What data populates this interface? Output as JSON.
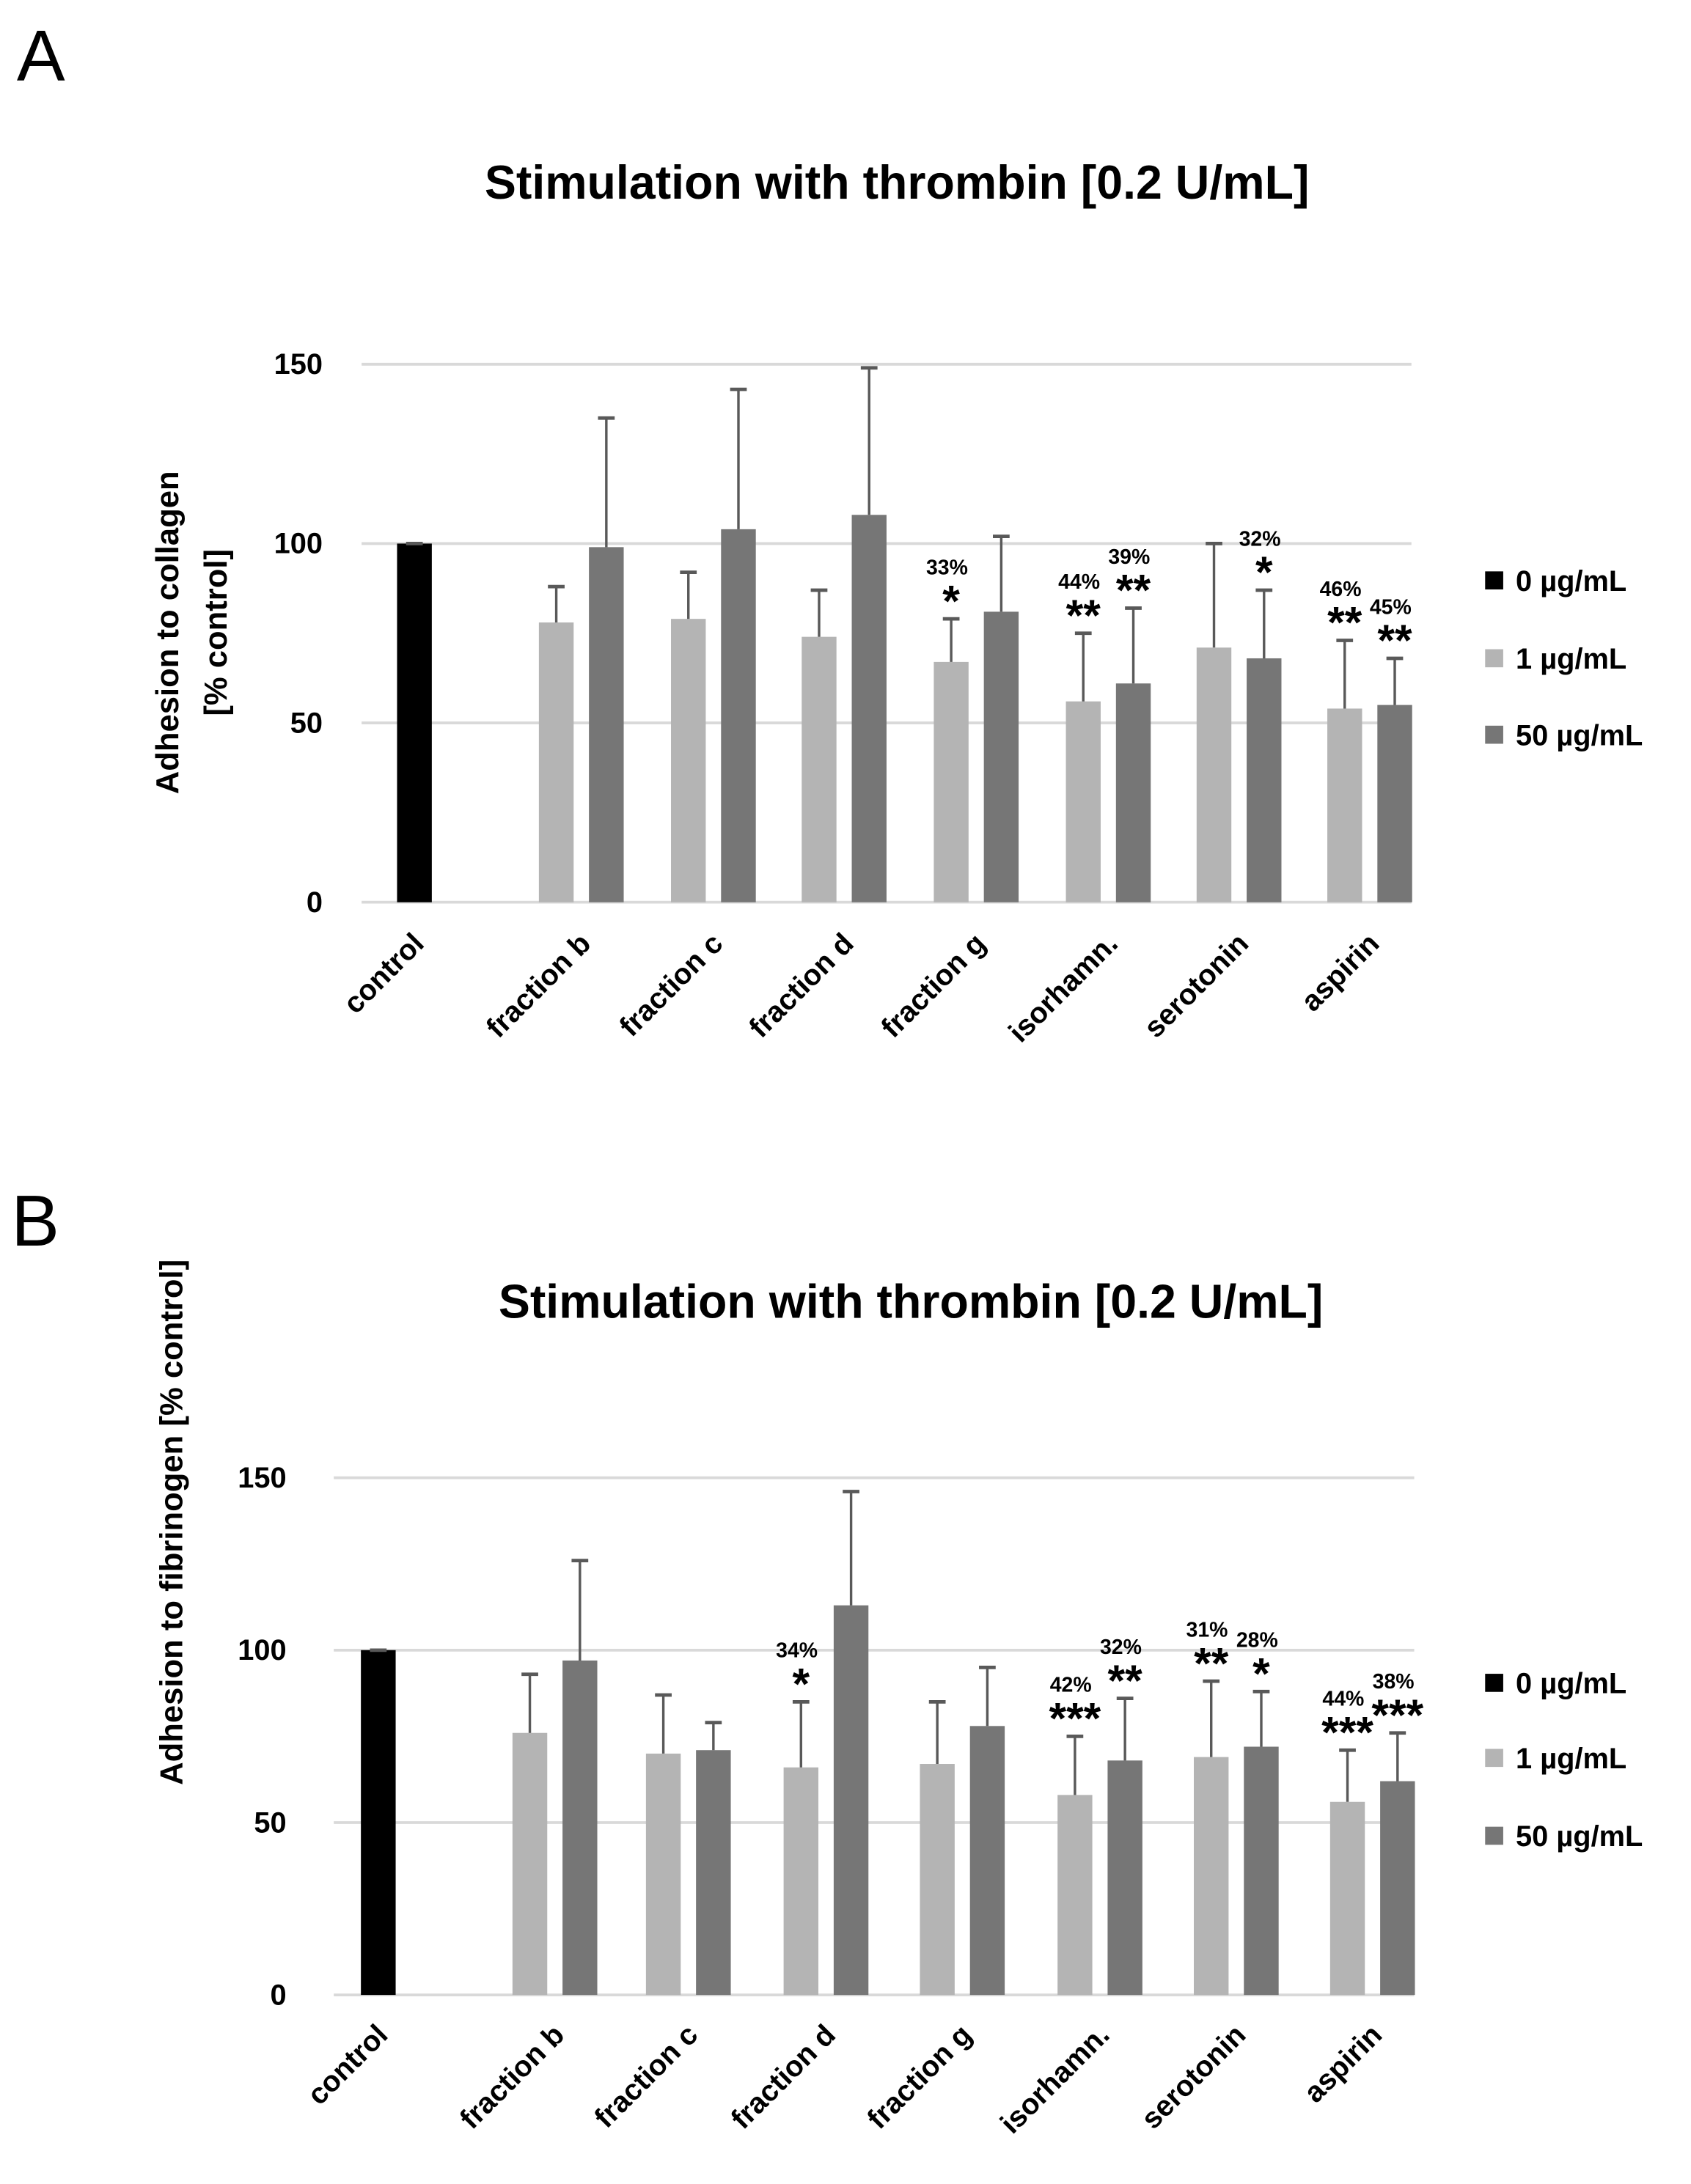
{
  "colors": {
    "0 µg/mL": "#000000",
    "1 µg/mL": "#b4b4b4",
    "50 µg/mL": "#767676",
    "grid": "#d9d9d9",
    "error": "#595959"
  },
  "chart_data": [
    {
      "panel": "A",
      "type": "bar",
      "title": "Stimulation with thrombin [0.2 U/mL]",
      "ylabel": [
        "Adhesion to collagen",
        "[% control]"
      ],
      "xlabel": "",
      "ylim": [
        0,
        150
      ],
      "yticks": [
        "0",
        "50",
        "100",
        "150"
      ],
      "grid": true,
      "legend_position": "right",
      "legend": [
        "0 µg/mL",
        "1 µg/mL",
        "50 µg/mL"
      ],
      "categories": [
        "control",
        "fraction b",
        "fraction c",
        "fraction d",
        "fraction g",
        "isorhamn.",
        "serotonin",
        "aspirin"
      ],
      "series": [
        {
          "name": "0 µg/mL",
          "values": [
            100,
            null,
            null,
            null,
            null,
            null,
            null,
            null
          ],
          "errors": [
            0,
            null,
            null,
            null,
            null,
            null,
            null,
            null
          ],
          "stars": [
            null,
            null,
            null,
            null,
            null,
            null,
            null,
            null
          ],
          "pcts": [
            null,
            null,
            null,
            null,
            null,
            null,
            null,
            null
          ]
        },
        {
          "name": "1 µg/mL",
          "values": [
            null,
            78,
            79,
            74,
            67,
            56,
            71,
            54
          ],
          "errors": [
            null,
            10,
            13,
            13,
            12,
            19,
            29,
            19
          ],
          "stars": [
            null,
            null,
            null,
            null,
            "*",
            "**",
            null,
            "**"
          ],
          "pcts": [
            null,
            null,
            null,
            null,
            "33%",
            "44%",
            null,
            "46%"
          ]
        },
        {
          "name": "50 µg/mL",
          "values": [
            null,
            99,
            104,
            108,
            81,
            61,
            68,
            55
          ],
          "errors": [
            null,
            36,
            39,
            41,
            21,
            21,
            19,
            13
          ],
          "stars": [
            null,
            null,
            null,
            null,
            null,
            "**",
            "*",
            "**"
          ],
          "pcts": [
            null,
            null,
            null,
            null,
            null,
            "39%",
            "32%",
            "45%"
          ]
        }
      ]
    },
    {
      "panel": "B",
      "type": "bar",
      "title": "Stimulation with thrombin [0.2 U/mL]",
      "ylabel": [
        "Adhesion to fibrinogen [% control]"
      ],
      "xlabel": "",
      "ylim": [
        0,
        150
      ],
      "yticks": [
        "0",
        "50",
        "100",
        "150"
      ],
      "grid": true,
      "legend_position": "right",
      "legend": [
        "0 µg/mL",
        "1 µg/mL",
        "50 µg/mL"
      ],
      "categories": [
        "control",
        "fraction b",
        "fraction c",
        "fraction d",
        "fraction g",
        "isorhamn.",
        "serotonin",
        "aspirin"
      ],
      "series": [
        {
          "name": "0 µg/mL",
          "values": [
            100,
            null,
            null,
            null,
            null,
            null,
            null,
            null
          ],
          "errors": [
            0,
            null,
            null,
            null,
            null,
            null,
            null,
            null
          ],
          "stars": [
            null,
            null,
            null,
            null,
            null,
            null,
            null,
            null
          ],
          "pcts": [
            null,
            null,
            null,
            null,
            null,
            null,
            null,
            null
          ]
        },
        {
          "name": "1 µg/mL",
          "values": [
            null,
            76,
            70,
            66,
            67,
            58,
            69,
            56
          ],
          "errors": [
            null,
            17,
            17,
            19,
            18,
            17,
            22,
            15
          ],
          "stars": [
            null,
            null,
            null,
            "*",
            null,
            "***",
            "**",
            "***"
          ],
          "pcts": [
            null,
            null,
            null,
            "34%",
            null,
            "42%",
            "31%",
            "44%"
          ]
        },
        {
          "name": "50 µg/mL",
          "values": [
            null,
            97,
            71,
            113,
            78,
            68,
            72,
            62
          ],
          "errors": [
            null,
            29,
            8,
            33,
            17,
            18,
            16,
            14
          ],
          "stars": [
            null,
            null,
            null,
            null,
            null,
            "**",
            "*",
            "***"
          ],
          "pcts": [
            null,
            null,
            null,
            null,
            null,
            "32%",
            "28%",
            "38%"
          ]
        }
      ]
    }
  ]
}
